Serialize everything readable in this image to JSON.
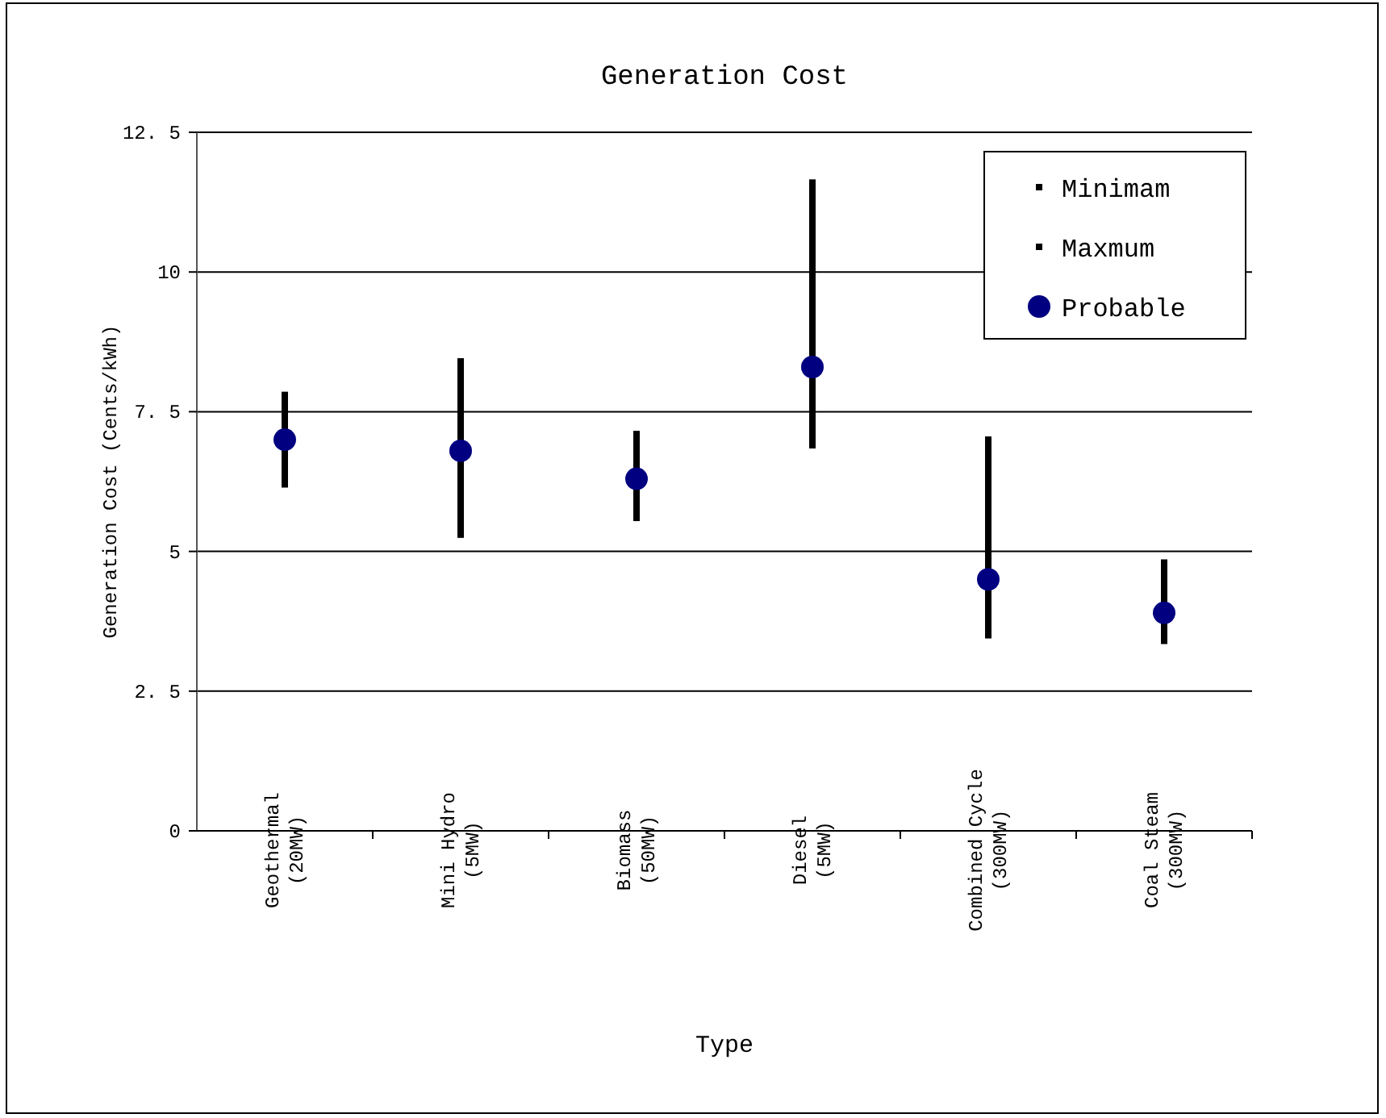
{
  "chart_data": {
    "type": "scatter",
    "title": "Generation Cost",
    "xlabel": "Type",
    "ylabel": "Generation Cost (Cents/kWh)",
    "categories": [
      "Geothermal\n(20MW)",
      "Mini Hydro\n(5MW)",
      "Biomass\n(50MW)",
      "Diesel\n(5MW)",
      "Combined Cycle\n(300MW)",
      "Coal Steam\n(300MW)"
    ],
    "series": [
      {
        "name": "Minimam",
        "color": "#000000",
        "marker": "square",
        "values": [
          6.2,
          5.3,
          5.6,
          6.9,
          3.5,
          3.4
        ]
      },
      {
        "name": "Maxmum",
        "color": "#000000",
        "marker": "square",
        "values": [
          7.8,
          8.4,
          7.1,
          11.6,
          7.0,
          4.8
        ]
      },
      {
        "name": "Probable",
        "color": "#000080",
        "marker": "circle",
        "values": [
          7.0,
          6.8,
          6.3,
          8.3,
          4.5,
          3.9
        ]
      }
    ],
    "ylim": [
      0,
      12.5
    ],
    "yticks": [
      0,
      2.5,
      5,
      7.5,
      10,
      12.5
    ],
    "grid": "y",
    "legend": "top right"
  }
}
